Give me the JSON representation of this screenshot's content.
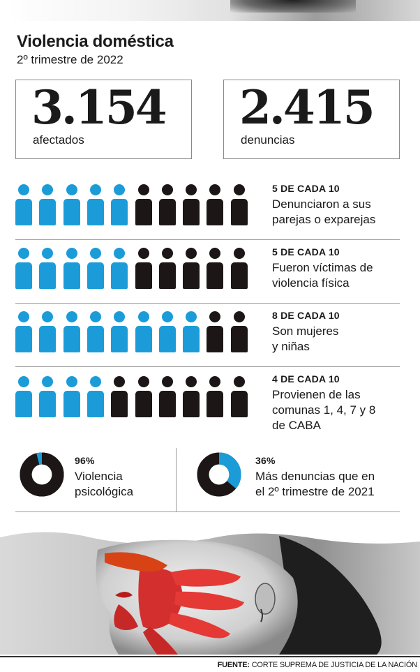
{
  "header": {
    "title": "Violencia doméstica",
    "subtitle": "2º trimestre de 2022"
  },
  "totals": [
    {
      "value": "3.154",
      "label": "afectados"
    },
    {
      "value": "2.415",
      "label": "denuncias"
    }
  ],
  "chart_data": [
    {
      "type": "pictogram",
      "colors": {
        "highlight": "#1b9cd9",
        "rest": "#1c1616"
      },
      "total": 10,
      "series": [
        {
          "value": 5,
          "title": "5 DE CADA 10",
          "description": "Denunciaron a sus\nparejas o exparejas"
        },
        {
          "value": 5,
          "title": "5 DE CADA 10",
          "description": "Fueron víctimas de\nviolencia física"
        },
        {
          "value": 8,
          "title": "8 DE CADA 10",
          "description": "Son mujeres\ny niñas"
        },
        {
          "value": 4,
          "title": "4 DE CADA 10",
          "description": "Provienen de las\ncomunas 1, 4, 7 y 8\nde CABA"
        }
      ]
    },
    {
      "type": "pie",
      "colors": {
        "highlight": "#1b9cd9",
        "rest": "#1c1616"
      },
      "slices": [
        {
          "value": 96,
          "label": "96%",
          "description": "Violencia\npsicológica"
        },
        {
          "value": 36,
          "label": "36%",
          "description": "Más denuncias que en\nel 2º trimestre de 2021"
        }
      ]
    }
  ],
  "footer": {
    "source_label": "FUENTE:",
    "source_text": "CORTE SUPREMA DE JUSTICIA DE LA NACIÓN"
  }
}
